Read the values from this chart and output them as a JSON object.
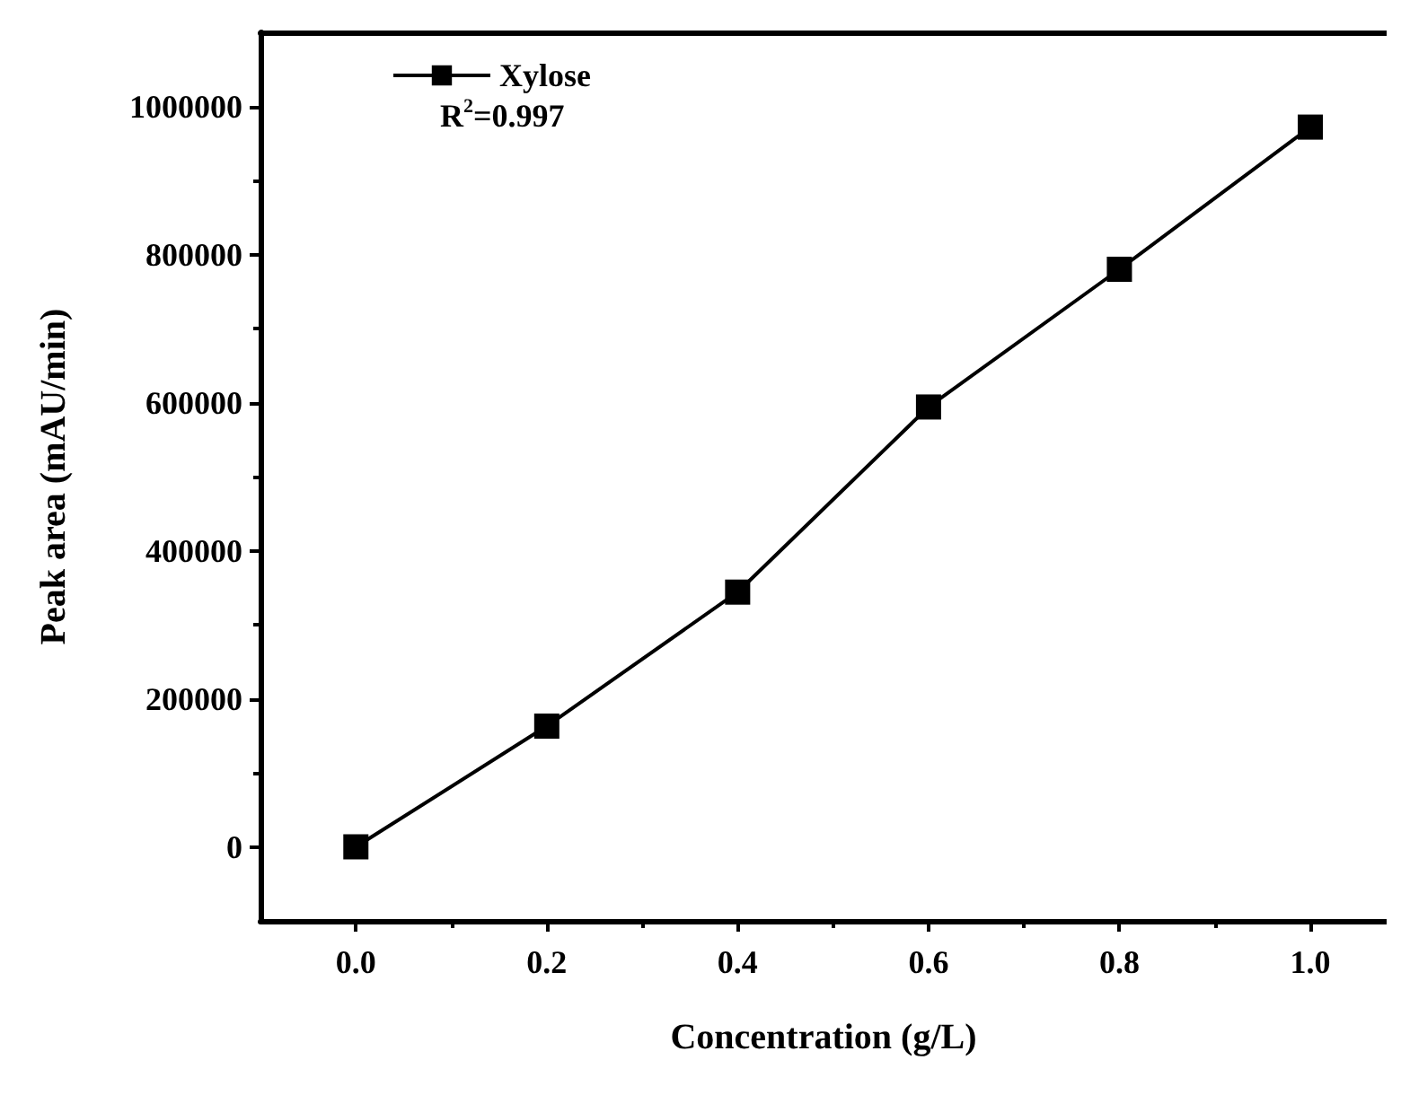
{
  "chart_data": {
    "type": "line",
    "xlabel": "Concentration (g/L)",
    "ylabel": "Peak area (mAU/min)",
    "x": [
      0,
      0.2,
      0.4,
      0.6,
      0.8,
      1.0
    ],
    "series": [
      {
        "name": "Xylose",
        "color": "#000000",
        "values": [
          0,
          163000,
          344000,
          594000,
          780000,
          972000
        ]
      }
    ],
    "annotations": [
      "R$^{2}$=0.997"
    ],
    "xlim": [
      -0.1,
      1.08
    ],
    "xticks": [
      {
        "value": 0,
        "label": "0.0"
      },
      {
        "value": 0.2,
        "label": "0.2"
      },
      {
        "value": 0.4,
        "label": "0.4"
      },
      {
        "value": 0.6,
        "label": "0.6"
      },
      {
        "value": 0.8,
        "label": "0.8"
      },
      {
        "value": 1,
        "label": "1.0"
      }
    ],
    "ylim": [
      -100000,
      1100000
    ],
    "yticks": [
      0,
      200000,
      400000,
      600000,
      800000,
      1000000
    ],
    "legend": "top left",
    "marker": "square",
    "line_style": "solid",
    "grid": false
  }
}
